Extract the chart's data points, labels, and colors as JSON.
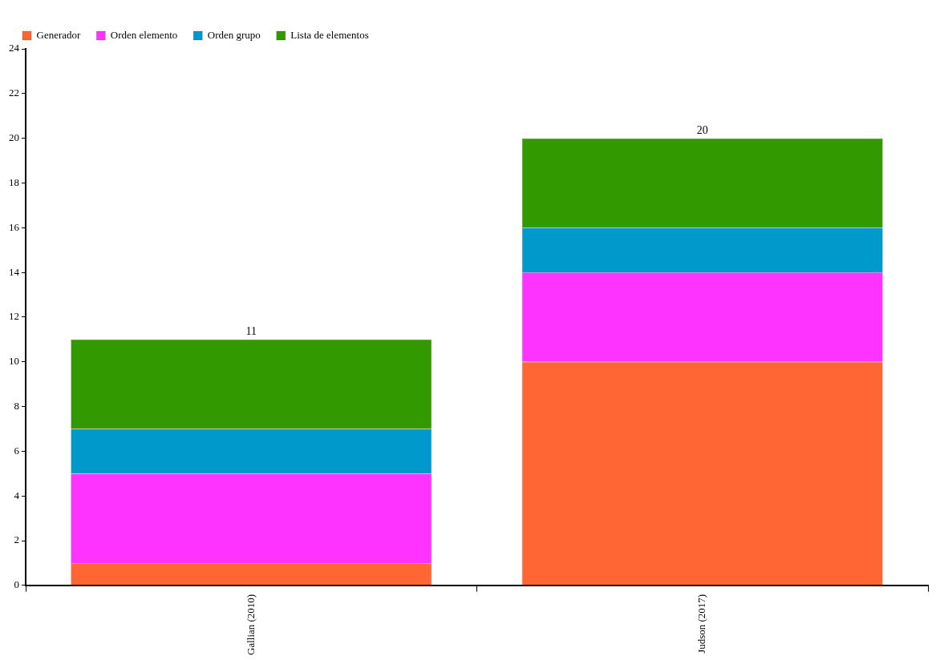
{
  "chart_data": {
    "type": "bar",
    "stacked": true,
    "categories": [
      "Gallian (2010)",
      "Judson (2017)"
    ],
    "series": [
      {
        "name": "Generador",
        "color": "#ff6633",
        "values": [
          1,
          10
        ]
      },
      {
        "name": "Orden elemento",
        "color": "#ff33ff",
        "values": [
          4,
          4
        ]
      },
      {
        "name": "Orden grupo",
        "color": "#0099cc",
        "values": [
          2,
          2
        ]
      },
      {
        "name": "Lista de elementos",
        "color": "#339900",
        "values": [
          4,
          4
        ]
      }
    ],
    "totals": [
      "11",
      "20"
    ],
    "ylim": [
      0,
      24
    ],
    "yticks": [
      0,
      2,
      4,
      6,
      8,
      10,
      12,
      14,
      16,
      18,
      20,
      22,
      24
    ],
    "grid": false,
    "legend": "top left"
  }
}
